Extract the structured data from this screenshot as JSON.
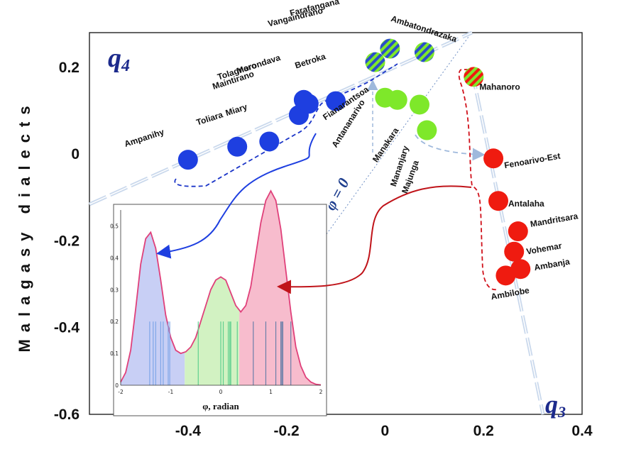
{
  "colors": {
    "blue": "#1e3fe0",
    "green": "#7ee82a",
    "red": "#ef1b10",
    "axis_dash": "#b8cce6",
    "blue_dash": "#1b35c8",
    "red_dash": "#d0101a",
    "quad_text": "#1c2a8c",
    "kde_line": "#e0407a",
    "kde_blue_fill": "#c8cff5",
    "kde_green_fill": "#d2f2c2",
    "kde_red_fill": "#f7bccd",
    "rug_blue": "#7fa6e8",
    "rug_green": "#5fcf8f",
    "rug_red": "#6a7fa8"
  },
  "chart_data": {
    "type": "scatter",
    "ylabel": "Malagasy dialects",
    "xlim": [
      -0.6,
      0.4
    ],
    "ylim": [
      -0.6,
      0.28
    ],
    "xticks": [
      "-0.4",
      "-0.2",
      "0",
      "0.2",
      "0.4"
    ],
    "xtick_values": [
      -0.4,
      -0.2,
      0,
      0.2,
      0.4
    ],
    "yticks": [
      "0.2",
      "0",
      "-0.2",
      "-0.4",
      "-0.6"
    ],
    "ytick_values": [
      0.2,
      0,
      -0.2,
      -0.4,
      -0.6
    ],
    "quadrant_labels": [
      "q4",
      "q3"
    ],
    "axis_line_label": "φ = 0",
    "points": [
      {
        "name": "Ampanihy",
        "x": -0.4,
        "y": -0.013,
        "group": "blue"
      },
      {
        "name": "Toliara",
        "x": -0.3,
        "y": 0.017,
        "group": "blue"
      },
      {
        "name": "Miary",
        "x": -0.235,
        "y": 0.029,
        "group": "blue"
      },
      {
        "name": "Maintirano",
        "x": -0.175,
        "y": 0.09,
        "group": "blue"
      },
      {
        "name": "Tolagnaro",
        "x": -0.165,
        "y": 0.125,
        "group": "blue"
      },
      {
        "name": "Morondava",
        "x": -0.155,
        "y": 0.116,
        "group": "blue"
      },
      {
        "name": "Betroka",
        "x": -0.1,
        "y": 0.122,
        "group": "blue"
      },
      {
        "name": "Vangaindrano",
        "x": -0.02,
        "y": 0.212,
        "group": "striped-green-blue"
      },
      {
        "name": "Farafangana",
        "x": 0.01,
        "y": 0.243,
        "group": "striped-green-blue"
      },
      {
        "name": "Ambatondrazaka",
        "x": 0.08,
        "y": 0.235,
        "group": "striped-green-blue"
      },
      {
        "name": "Fianarantsoa",
        "x": 0.0,
        "y": 0.13,
        "group": "green"
      },
      {
        "name": "Antananarivo",
        "x": 0.025,
        "y": 0.125,
        "group": "green"
      },
      {
        "name": "Manakara",
        "x": 0.07,
        "y": 0.114,
        "group": "green"
      },
      {
        "name": "Mananjary",
        "x": 0.085,
        "y": 0.055,
        "group": "green"
      },
      {
        "name": "Majunga",
        "x": 0.085,
        "y": 0.055,
        "group": "green"
      },
      {
        "name": "Mahanoro",
        "x": 0.18,
        "y": 0.178,
        "group": "striped-red-green"
      },
      {
        "name": "Fenoarivo-Est",
        "x": 0.22,
        "y": -0.01,
        "group": "red"
      },
      {
        "name": "Antalaha",
        "x": 0.23,
        "y": -0.108,
        "group": "red"
      },
      {
        "name": "Mandritsara",
        "x": 0.27,
        "y": -0.178,
        "group": "red"
      },
      {
        "name": "Vohemar",
        "x": 0.262,
        "y": -0.225,
        "group": "red"
      },
      {
        "name": "Ambanja",
        "x": 0.275,
        "y": -0.265,
        "group": "red"
      },
      {
        "name": "Ambilobe",
        "x": 0.245,
        "y": -0.28,
        "group": "red"
      }
    ],
    "inset": {
      "type": "area",
      "xlabel": "φ, radian",
      "xlim": [
        -2,
        2
      ],
      "ylim": [
        0,
        0.55
      ],
      "xticks": [
        "-2",
        "-1",
        "0",
        "1",
        "2"
      ],
      "xtick_values": [
        -2,
        -1,
        0,
        1,
        2
      ],
      "yticks": [
        "0",
        "0.1",
        "0.2",
        "0.3",
        "0.4",
        "0.5"
      ],
      "ytick_values": [
        0,
        0.1,
        0.2,
        0.3,
        0.4,
        0.5
      ],
      "density": {
        "x": [
          -2.0,
          -1.9,
          -1.8,
          -1.7,
          -1.6,
          -1.5,
          -1.4,
          -1.3,
          -1.2,
          -1.1,
          -1.0,
          -0.9,
          -0.8,
          -0.7,
          -0.6,
          -0.5,
          -0.4,
          -0.3,
          -0.2,
          -0.1,
          0.0,
          0.1,
          0.2,
          0.3,
          0.4,
          0.5,
          0.6,
          0.7,
          0.8,
          0.9,
          1.0,
          1.1,
          1.2,
          1.3,
          1.4,
          1.5,
          1.6,
          1.7,
          1.8,
          1.9,
          2.0
        ],
        "y": [
          0.01,
          0.04,
          0.11,
          0.24,
          0.38,
          0.46,
          0.48,
          0.43,
          0.33,
          0.22,
          0.15,
          0.11,
          0.1,
          0.105,
          0.12,
          0.15,
          0.2,
          0.25,
          0.3,
          0.33,
          0.34,
          0.33,
          0.29,
          0.25,
          0.23,
          0.25,
          0.31,
          0.41,
          0.51,
          0.58,
          0.61,
          0.58,
          0.49,
          0.36,
          0.23,
          0.12,
          0.06,
          0.025,
          0.01,
          0.003,
          0.001
        ]
      },
      "regions": [
        {
          "name": "blue",
          "from": -2,
          "to": -0.72
        },
        {
          "name": "green",
          "from": -0.72,
          "to": 0.37
        },
        {
          "name": "red",
          "from": 0.37,
          "to": 2
        }
      ],
      "rug": [
        {
          "x": -1.42,
          "group": "blue"
        },
        {
          "x": -1.35,
          "group": "blue"
        },
        {
          "x": -1.3,
          "group": "blue"
        },
        {
          "x": -1.2,
          "group": "blue"
        },
        {
          "x": -1.15,
          "group": "blue"
        },
        {
          "x": -1.05,
          "group": "blue"
        },
        {
          "x": -1.02,
          "group": "blue"
        },
        {
          "x": -0.45,
          "group": "green"
        },
        {
          "x": 0.0,
          "group": "green"
        },
        {
          "x": 0.05,
          "group": "green"
        },
        {
          "x": 0.15,
          "group": "green"
        },
        {
          "x": 0.18,
          "group": "green"
        },
        {
          "x": 0.2,
          "group": "green"
        },
        {
          "x": 0.33,
          "group": "green"
        },
        {
          "x": 0.65,
          "group": "red"
        },
        {
          "x": 0.9,
          "group": "red"
        },
        {
          "x": 1.1,
          "group": "red"
        },
        {
          "x": 1.2,
          "group": "red"
        },
        {
          "x": 1.22,
          "group": "red"
        },
        {
          "x": 1.24,
          "group": "red"
        },
        {
          "x": 1.4,
          "group": "red"
        }
      ]
    }
  }
}
